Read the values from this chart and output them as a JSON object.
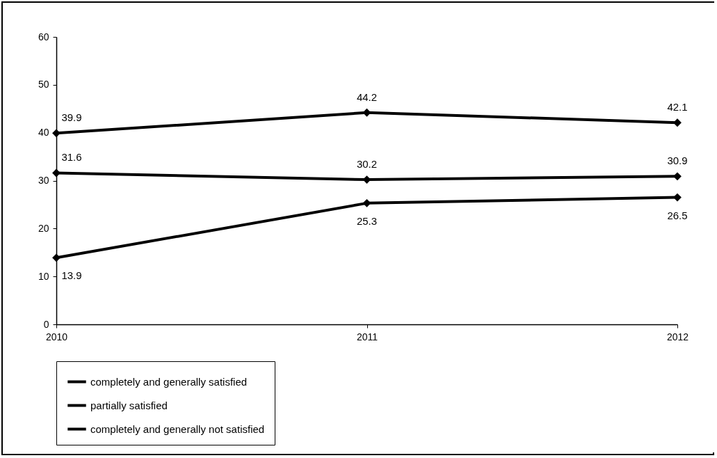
{
  "chart_data": {
    "type": "line",
    "categories": [
      "2010",
      "2011",
      "2012"
    ],
    "series": [
      {
        "name": "completely and generally satisfied",
        "color": "#000000",
        "values": [
          39.9,
          44.2,
          42.1
        ]
      },
      {
        "name": "partially satisfied",
        "color": "#000000",
        "values": [
          31.6,
          30.2,
          30.9
        ]
      },
      {
        "name": "completely and generally not satisfied",
        "color": "#000000",
        "values": [
          13.9,
          25.3,
          26.5
        ]
      }
    ],
    "ylim": [
      0,
      60
    ],
    "yticks": [
      0,
      10,
      20,
      30,
      40,
      50,
      60
    ],
    "grid": false,
    "legend": "bottom",
    "marker": "diamond",
    "line_style": "solid",
    "data_labels": true
  }
}
